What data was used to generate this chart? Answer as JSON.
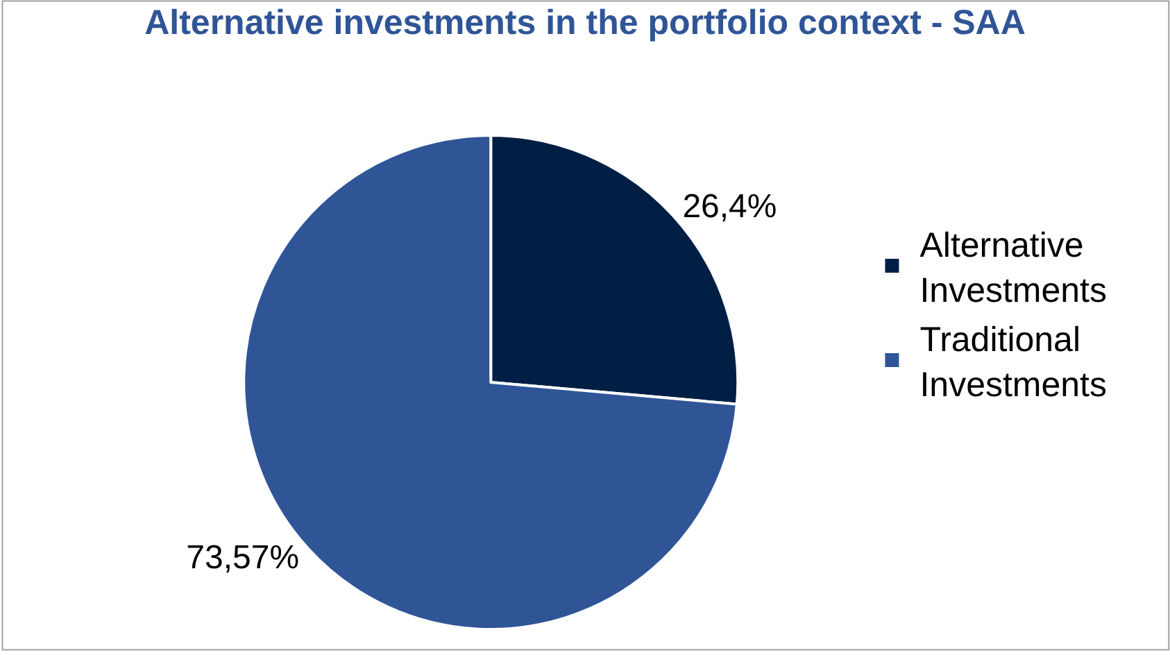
{
  "chart_data": {
    "type": "pie",
    "title": "Alternative investments in the portfolio context - SAA",
    "categories": [
      "Alternative Investments",
      "Traditional Investments"
    ],
    "values": [
      26.4,
      73.57
    ],
    "colors": [
      "#011f45",
      "#2f5597"
    ],
    "value_labels": [
      "26,4%",
      "73,57%"
    ],
    "legend": "right"
  }
}
